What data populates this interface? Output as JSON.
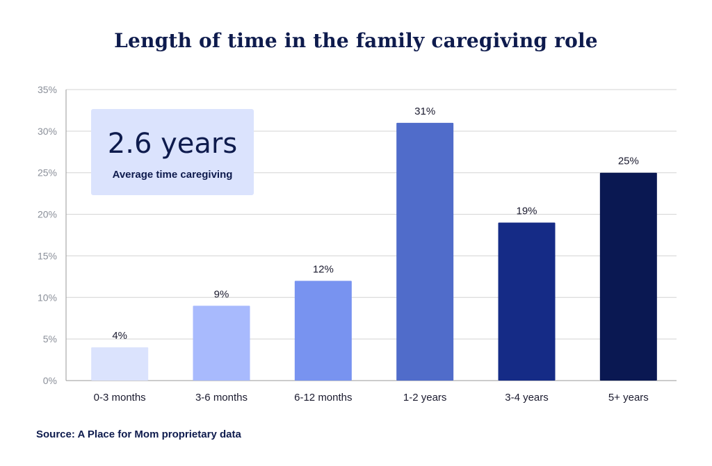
{
  "title": "Length of time in the family caregiving role",
  "callout": {
    "value": "2.6 years",
    "label": "Average time caregiving"
  },
  "source": "Source: A Place for Mom proprietary data",
  "chart_data": {
    "type": "bar",
    "title": "Length of time in the family caregiving role",
    "xlabel": "",
    "ylabel": "",
    "categories": [
      "0-3 months",
      "3-6 months",
      "6-12 months",
      "1-2 years",
      "3-4 years",
      "5+ years"
    ],
    "values": [
      4,
      9,
      12,
      31,
      19,
      25
    ],
    "value_labels": [
      "4%",
      "9%",
      "12%",
      "31%",
      "19%",
      "25%"
    ],
    "bar_colors": [
      "#dbe3fd",
      "#a8bafd",
      "#7893f0",
      "#506cca",
      "#152b86",
      "#0a1852"
    ],
    "ylim": [
      0,
      35
    ],
    "yticks": [
      0,
      5,
      10,
      15,
      20,
      25,
      30,
      35
    ],
    "ytick_labels": [
      "0%",
      "5%",
      "10%",
      "15%",
      "20%",
      "25%",
      "30%",
      "35%"
    ],
    "grid": true,
    "legend": "none"
  }
}
